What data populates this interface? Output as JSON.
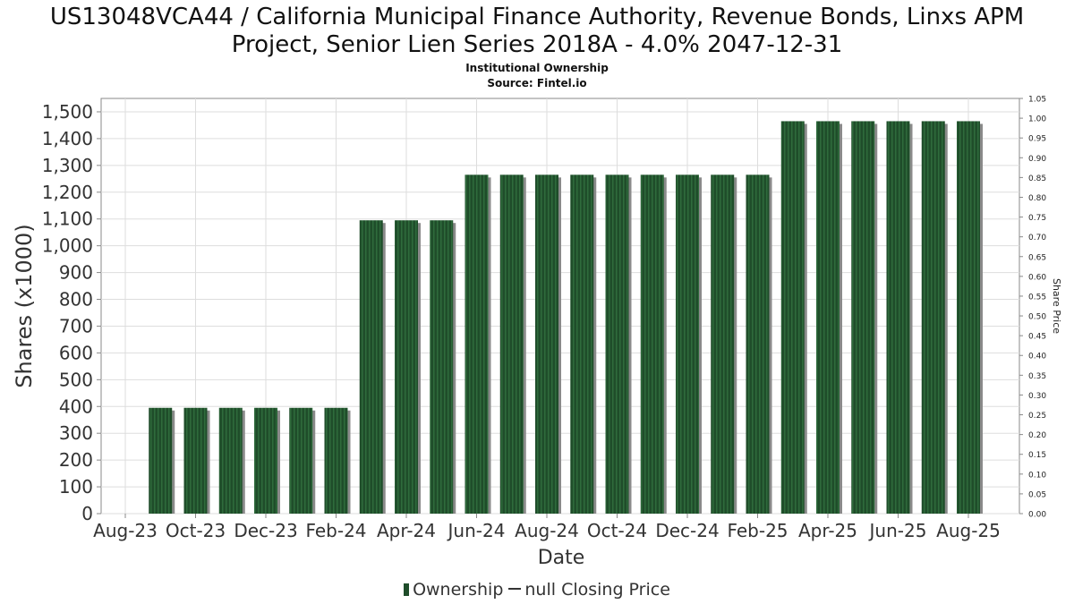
{
  "title_line1": "US13048VCA44 / California Municipal Finance Authority, Revenue Bonds, Linxs APM",
  "title_line2": "Project, Senior Lien Series 2018A - 4.0% 2047-12-31",
  "subtitle_line1": "Institutional Ownership",
  "subtitle_line2": "Source: Fintel.io",
  "legend": {
    "ownership": "Ownership",
    "price": "null Closing Price"
  },
  "colors": {
    "bar": "#1f4d2a",
    "bar_stripe": "#2f6b3c",
    "bar_shadow": "#8a8a8a",
    "grid": "#dddddd",
    "axis": "#888888"
  },
  "chart_data": {
    "type": "bar",
    "xlabel": "Date",
    "ylabel": "Shares (x1000)",
    "y2label": "Share Price",
    "ylim": [
      0,
      1550
    ],
    "y2lim": [
      0,
      1.05
    ],
    "yticks": [
      "0",
      "100",
      "200",
      "300",
      "400",
      "500",
      "600",
      "700",
      "800",
      "900",
      "1,000",
      "1,100",
      "1,200",
      "1,300",
      "1,400",
      "1,500"
    ],
    "y2ticks": [
      "0.00",
      "0.05",
      "0.10",
      "0.15",
      "0.20",
      "0.25",
      "0.30",
      "0.35",
      "0.40",
      "0.45",
      "0.50",
      "0.55",
      "0.60",
      "0.65",
      "0.70",
      "0.75",
      "0.80",
      "0.85",
      "0.90",
      "0.95",
      "1.00",
      "1.05"
    ],
    "xticks": [
      "Aug-23",
      "Oct-23",
      "Dec-23",
      "Feb-24",
      "Apr-24",
      "Jun-24",
      "Aug-24",
      "Oct-24",
      "Dec-24",
      "Feb-25",
      "Apr-25",
      "Jun-25",
      "Aug-25"
    ],
    "grid": true,
    "legend_position": "bottom",
    "series": [
      {
        "name": "Ownership",
        "categories": [
          "Sep-23",
          "Oct-23",
          "Nov-23",
          "Dec-23",
          "Jan-24",
          "Feb-24",
          "Mar-24",
          "Apr-24",
          "May-24",
          "Jun-24",
          "Jul-24",
          "Aug-24",
          "Sep-24",
          "Oct-24",
          "Nov-24",
          "Dec-24",
          "Jan-25",
          "Feb-25",
          "Mar-25",
          "Apr-25",
          "May-25",
          "Jun-25",
          "Jul-25",
          "Aug-25"
        ],
        "values": [
          395,
          395,
          395,
          395,
          395,
          395,
          1095,
          1095,
          1095,
          1265,
          1265,
          1265,
          1265,
          1265,
          1265,
          1265,
          1265,
          1265,
          1465,
          1465,
          1465,
          1465,
          1465,
          1465
        ]
      },
      {
        "name": "null Closing Price",
        "values": []
      }
    ]
  }
}
